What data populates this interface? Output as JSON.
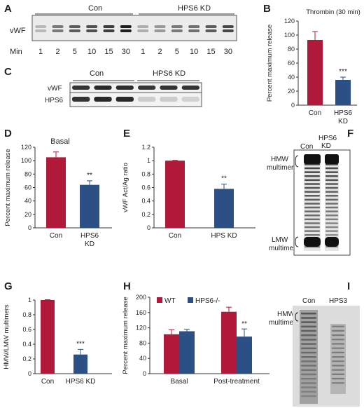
{
  "colors": {
    "con": "#b0193a",
    "kd": "#2c4f86",
    "axis": "#333333"
  },
  "panels": {
    "A": {
      "letter": "A",
      "group_con": "Con",
      "group_kd": "HPS6 KD",
      "row_label": "vWF",
      "min_label": "Min",
      "minutes": [
        "1",
        "2",
        "5",
        "10",
        "15",
        "30",
        "1",
        "2",
        "5",
        "10",
        "15",
        "30"
      ],
      "band_intensity": [
        0.25,
        0.55,
        0.7,
        0.75,
        0.85,
        1.0,
        0.3,
        0.4,
        0.55,
        0.6,
        0.7,
        0.8
      ]
    },
    "C": {
      "letter": "C",
      "group_con": "Con",
      "group_kd": "HPS6 KD",
      "row1": "vWF",
      "row2": "HPS6",
      "vwf_intensity": [
        0.9,
        0.95,
        0.92,
        0.88,
        0.9,
        0.9
      ],
      "hps6_intensity": [
        0.9,
        0.95,
        0.95,
        0.15,
        0.15,
        0.12
      ]
    },
    "F": {
      "letter": "F",
      "lane1": "Con",
      "lane2": "HPS6",
      "lane2b": "KD",
      "hmw_line1": "HMW",
      "hmw_line2": "multimers",
      "lmw_line1": "LMW",
      "lmw_line2": "multimer"
    },
    "I": {
      "letter": "I",
      "lane1": "Con",
      "lane2": "HPS3",
      "hmw_line1": "HMW",
      "hmw_line2": "multimers"
    }
  },
  "chart_data": [
    {
      "panel": "B",
      "type": "bar",
      "title": "Thrombin (30 min)",
      "ylabel": "Percent maximum release",
      "ylim": [
        0,
        120
      ],
      "yticks": [
        "0",
        "20",
        "40",
        "60",
        "80",
        "100",
        "120"
      ],
      "categories": [
        "Con",
        "HPS6\nKD"
      ],
      "cat_line1": [
        "Con",
        "HPS6"
      ],
      "cat_line2": [
        "",
        "KD"
      ],
      "values": [
        93,
        36
      ],
      "errors": [
        12,
        4
      ],
      "sig": [
        "",
        "***"
      ]
    },
    {
      "panel": "D",
      "type": "bar",
      "title": "Basal",
      "ylabel": "Percent maximum release",
      "ylim": [
        0,
        120
      ],
      "yticks": [
        "0",
        "20",
        "40",
        "60",
        "80",
        "100",
        "120"
      ],
      "cat_line1": [
        "Con",
        "HPS6"
      ],
      "cat_line2": [
        "",
        "KD"
      ],
      "values": [
        105,
        64
      ],
      "errors": [
        8,
        6
      ],
      "sig": [
        "",
        "**"
      ]
    },
    {
      "panel": "E",
      "type": "bar",
      "title": "",
      "ylabel": "vWF Act/Ag ratio",
      "ylim": [
        0,
        1.2
      ],
      "yticks": [
        "0",
        "0.2",
        "0.4",
        "0.6",
        "0.8",
        "1",
        "1.2"
      ],
      "cat_line1": [
        "Con",
        "HPS KD"
      ],
      "cat_line2": [
        "",
        ""
      ],
      "values": [
        1.0,
        0.58
      ],
      "errors": [
        0.005,
        0.07
      ],
      "sig": [
        "",
        "**"
      ]
    },
    {
      "panel": "G",
      "type": "bar",
      "title": "",
      "ylabel": "HMW/LMW multimers",
      "ylim": [
        0,
        1
      ],
      "yticks": [
        "0",
        "0.2",
        "0.4",
        "0.6",
        "0.8",
        "1"
      ],
      "cat_line1": [
        "Con",
        "HPS6 KD"
      ],
      "cat_line2": [
        "",
        ""
      ],
      "values": [
        1.0,
        0.26
      ],
      "errors": [
        0.005,
        0.07
      ],
      "sig": [
        "",
        "***"
      ]
    },
    {
      "panel": "H",
      "type": "bar",
      "title": "",
      "ylabel": "Percent maximum release",
      "ylim": [
        0,
        200
      ],
      "yticks": [
        "0",
        "40",
        "80",
        "120",
        "160",
        "200"
      ],
      "categories": [
        "Basal",
        "Post-treatment"
      ],
      "series": [
        {
          "name": "WT",
          "values": [
            103,
            162
          ],
          "errors": [
            12,
            12
          ],
          "sig": [
            "",
            ""
          ]
        },
        {
          "name": "HPS6-/-",
          "values": [
            111,
            97
          ],
          "errors": [
            5,
            20
          ],
          "sig": [
            "",
            "**"
          ]
        }
      ],
      "legend": "top-left"
    }
  ]
}
